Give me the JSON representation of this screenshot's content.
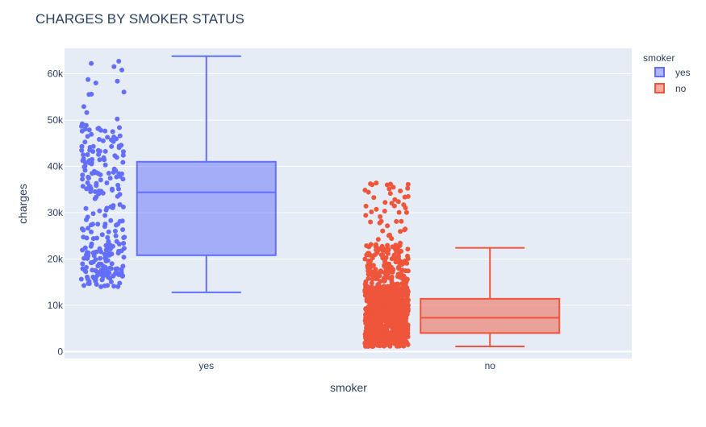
{
  "chart_data": {
    "type": "box",
    "title": "CHARGES BY SMOKER STATUS",
    "xlabel": "smoker",
    "ylabel": "charges",
    "categories": [
      "yes",
      "no"
    ],
    "ylim": [
      -1500,
      65500
    ],
    "yticks": [
      0,
      10000,
      20000,
      30000,
      40000,
      50000,
      60000
    ],
    "ytick_labels": [
      "0",
      "10k",
      "20k",
      "30k",
      "40k",
      "50k",
      "60k"
    ],
    "grid": true,
    "legend": {
      "title": "smoker",
      "placement": "top-right",
      "entries": [
        "yes",
        "no"
      ]
    },
    "series": [
      {
        "name": "yes",
        "category": "yes",
        "color": "#636efa",
        "box": {
          "min": 12800,
          "q1": 20800,
          "median": 34400,
          "q3": 41000,
          "max": 63800
        },
        "points_range": [
          12800,
          63800
        ]
      },
      {
        "name": "no",
        "category": "no",
        "color": "#ef553b",
        "box": {
          "min": 1100,
          "q1": 4000,
          "median": 7300,
          "q3": 11400,
          "max": 22400
        },
        "points_range": [
          1100,
          36900
        ]
      }
    ]
  },
  "colors": {
    "plot_background": "#e5ecf6",
    "grid": "#ffffff",
    "text": "#2a3f5f"
  }
}
